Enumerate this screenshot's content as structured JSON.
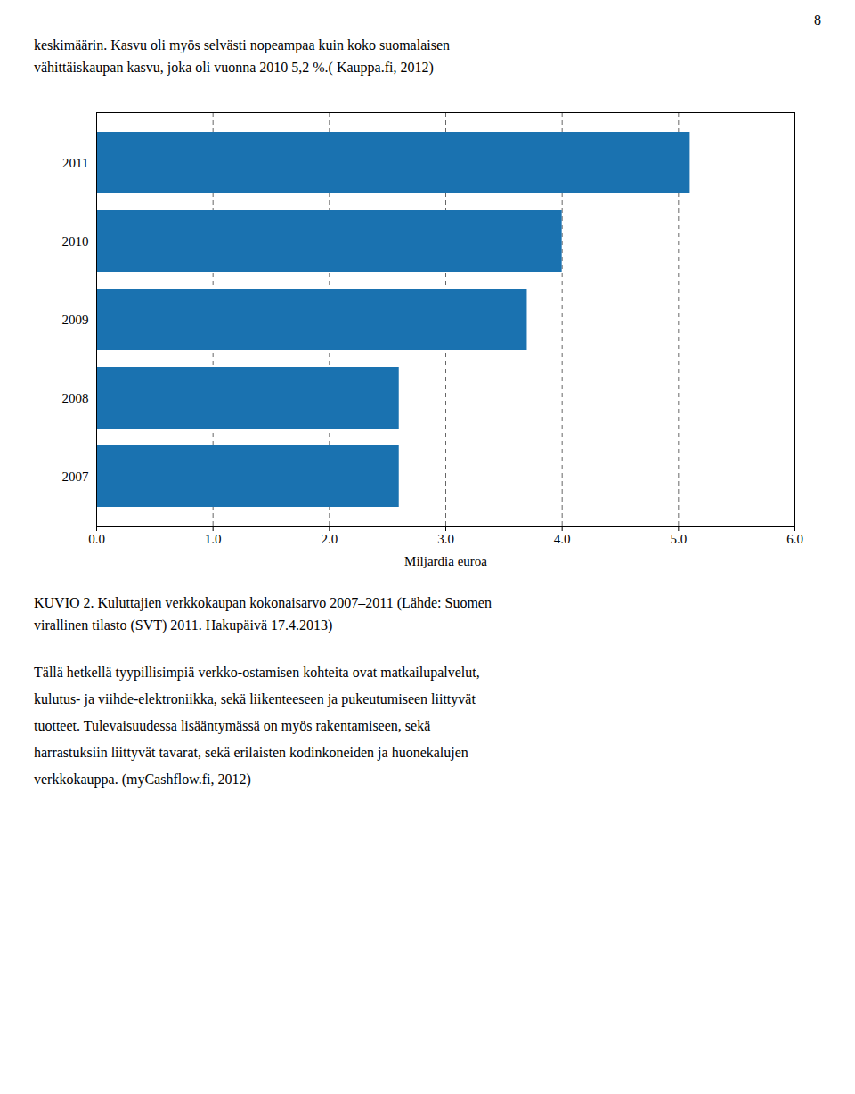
{
  "chart_data": {
    "type": "bar",
    "orientation": "horizontal",
    "categories": [
      "2011",
      "2010",
      "2009",
      "2008",
      "2007"
    ],
    "values": [
      5.1,
      4.0,
      3.7,
      2.6,
      2.6
    ],
    "color": "#1a72b0",
    "xlabel": "Miljardia euroa",
    "xlim": [
      0,
      6
    ],
    "xticks": [
      0,
      1,
      2,
      3,
      4,
      5,
      6
    ],
    "grid": true,
    "annotations": [
      "8",
      "keskimäärin. Kasvu oli myös selvästi nopeampaa kuin koko suomalaisen",
      "vähittäiskaupan kasvu, joka oli vuonna 2010 5,2 %.( Kauppa.fi, 2012)",
      "KUVIO 2.  Kuluttajien verkkokaupan kokonaisarvo 2007–2011 (Lähde: Suomen",
      "virallinen tilasto (SVT) 2011. Hakupäivä 17.4.2013)",
      "Tällä hetkellä tyypillisimpiä verkko-ostamisen kohteita ovat matkailupalvelut,",
      "kulutus- ja viihde-elektroniikka, sekä liikenteeseen ja pukeutumiseen liittyvät",
      "tuotteet. Tulevaisuudessa lisääntymässä on myös rakentamiseen, sekä",
      "harrastuksiin liittyvät tavarat, sekä erilaisten kodinkoneiden ja huonekalujen",
      "verkkokauppa. (myCashflow.fi, 2012)"
    ]
  }
}
